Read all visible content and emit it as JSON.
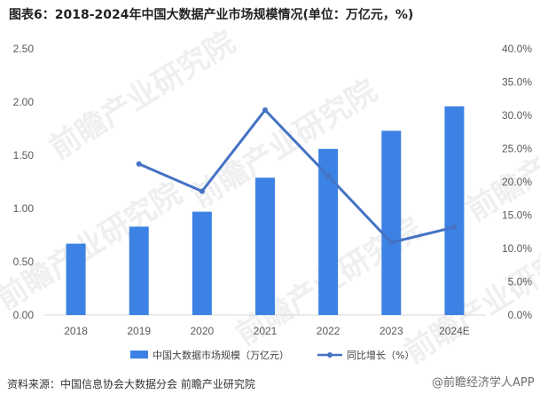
{
  "title": "图表6：2018-2024年中国大数据产业市场规模情况(单位：万亿元，%)",
  "source": "资料来源：中国信息协会大数据分会 前瞻产业研究院",
  "watermark": "前瞻产业研究院",
  "watermark_corner": "@前瞻经济学人APP",
  "colors": {
    "bar": "#3c82e4",
    "line": "#4472c4",
    "axis": "#d9d9d9",
    "text": "#595959"
  },
  "chart_data": {
    "type": "bar",
    "categories": [
      "2018",
      "2019",
      "2020",
      "2021",
      "2022",
      "2023",
      "2024E"
    ],
    "series": [
      {
        "name": "中国大数据市场规模（万亿元）",
        "type": "bar",
        "axis": "left",
        "values": [
          0.67,
          0.83,
          0.97,
          1.29,
          1.56,
          1.73,
          1.96
        ]
      },
      {
        "name": "同比增长（%）",
        "type": "line",
        "axis": "right",
        "values": [
          null,
          22.7,
          18.6,
          30.8,
          20.9,
          10.9,
          13.2
        ]
      }
    ],
    "y_left": {
      "lim": [
        0,
        2.5
      ],
      "ticks": [
        "0.00",
        "0.50",
        "1.00",
        "1.50",
        "2.00",
        "2.50"
      ]
    },
    "y_right": {
      "lim": [
        0,
        40
      ],
      "ticks": [
        "0.0%",
        "5.0%",
        "10.0%",
        "15.0%",
        "20.0%",
        "25.0%",
        "30.0%",
        "35.0%",
        "40.0%"
      ]
    },
    "legend": "bottom",
    "grid": false
  }
}
